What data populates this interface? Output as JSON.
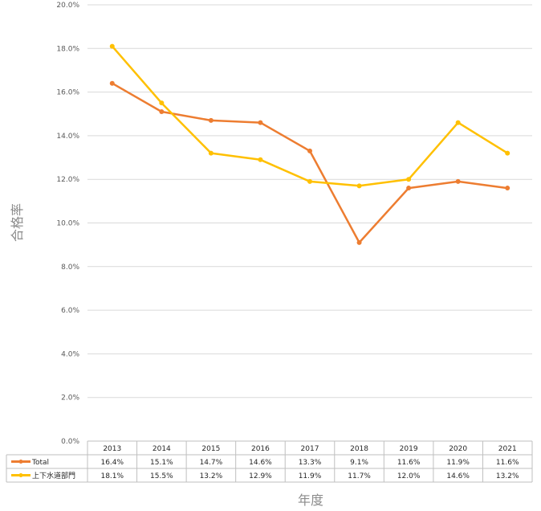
{
  "chart_data": {
    "type": "line",
    "title": "",
    "xlabel": "年度",
    "ylabel": "合格率",
    "ylim": [
      0,
      20
    ],
    "y_ticks": [
      "0.0%",
      "2.0%",
      "4.0%",
      "6.0%",
      "8.0%",
      "10.0%",
      "12.0%",
      "14.0%",
      "16.0%",
      "18.0%",
      "20.0%"
    ],
    "grid": true,
    "legend": "data-table",
    "categories": [
      "2013",
      "2014",
      "2015",
      "2016",
      "2017",
      "2018",
      "2019",
      "2020",
      "2021"
    ],
    "series": [
      {
        "name": "Total",
        "color": "#ED7D31",
        "values": [
          16.4,
          15.1,
          14.7,
          14.6,
          13.3,
          9.1,
          11.6,
          11.9,
          11.6
        ],
        "labels": [
          "16.4%",
          "15.1%",
          "14.7%",
          "14.6%",
          "13.3%",
          "9.1%",
          "11.6%",
          "11.9%",
          "11.6%"
        ]
      },
      {
        "name": "上下水道部門",
        "color": "#FFC000",
        "values": [
          18.1,
          15.5,
          13.2,
          12.9,
          11.9,
          11.7,
          12.0,
          14.6,
          13.2
        ],
        "labels": [
          "18.1%",
          "15.5%",
          "13.2%",
          "12.9%",
          "11.9%",
          "11.7%",
          "12.0%",
          "14.6%",
          "13.2%"
        ]
      }
    ]
  }
}
